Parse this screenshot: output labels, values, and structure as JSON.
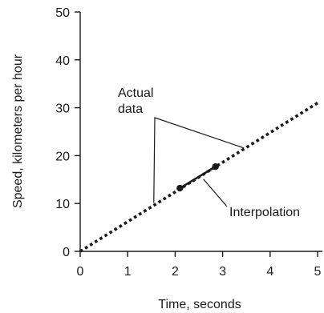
{
  "chart_data": {
    "type": "line",
    "xlabel": "Time, seconds",
    "ylabel": "Speed, kilometers per hour",
    "xlim": [
      0,
      5
    ],
    "ylim": [
      0,
      50
    ],
    "x_ticks": [
      0,
      1,
      2,
      3,
      4,
      5
    ],
    "y_ticks": [
      0,
      10,
      20,
      30,
      40,
      50
    ],
    "grid": false,
    "series": [
      {
        "name": "Actual data",
        "style": "dotted",
        "x": [
          0,
          5
        ],
        "y": [
          0,
          31
        ]
      },
      {
        "name": "Interpolation",
        "style": "solid",
        "x": [
          2.1,
          2.85
        ],
        "y": [
          13.2,
          17.7
        ],
        "markers": true
      }
    ],
    "annotations": [
      {
        "text": "Actual data",
        "lines": [
          "Actual",
          "data"
        ]
      },
      {
        "text": "Interpolation"
      }
    ]
  }
}
